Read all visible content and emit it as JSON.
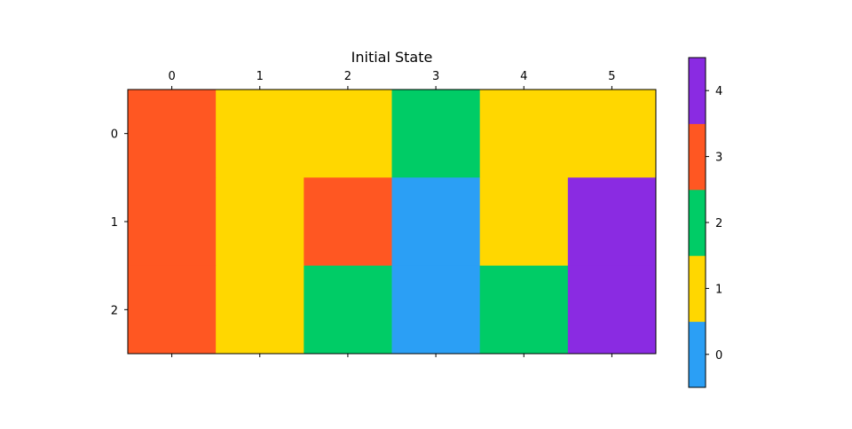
{
  "chart_data": {
    "type": "heatmap",
    "title": "Initial State",
    "xlabel": "",
    "ylabel": "",
    "x_ticks": [
      "0",
      "1",
      "2",
      "3",
      "4",
      "5"
    ],
    "y_ticks": [
      "0",
      "1",
      "2"
    ],
    "grid": false,
    "x_tick_position": "top-and-bottom",
    "matrix": [
      [
        3,
        1,
        1,
        2,
        1,
        1
      ],
      [
        3,
        1,
        3,
        0,
        1,
        4
      ],
      [
        3,
        1,
        2,
        0,
        2,
        4
      ]
    ],
    "colorbar": {
      "placement": "right",
      "ticks": [
        "0",
        "1",
        "2",
        "3",
        "4"
      ],
      "range": [
        -0.5,
        4.5
      ]
    },
    "colors": {
      "0": "#2b9ff5",
      "1": "#ffd700",
      "2": "#00cc66",
      "3": "#ff5722",
      "4": "#8a2be2"
    }
  }
}
